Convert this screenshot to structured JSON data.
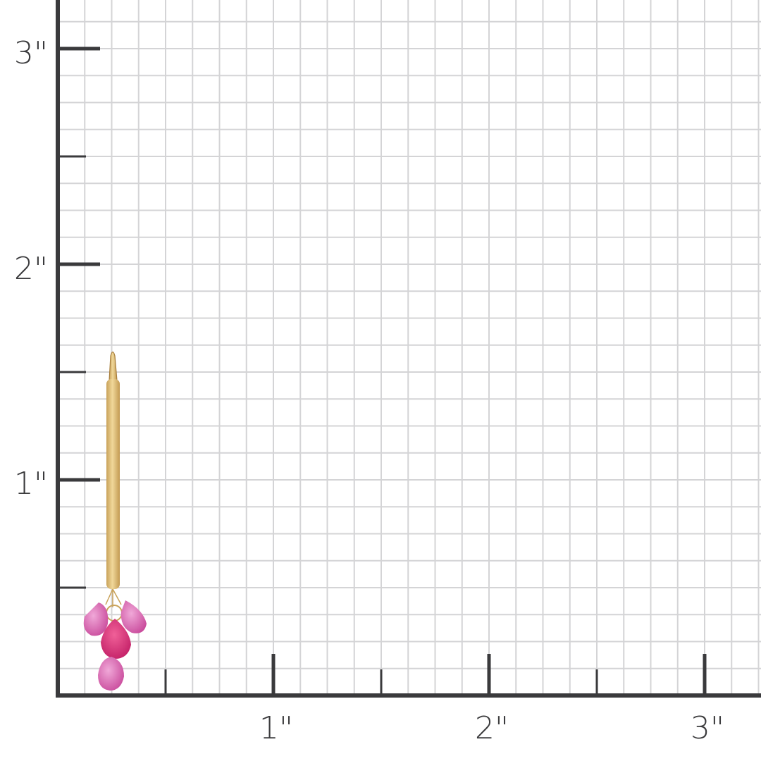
{
  "ruler": {
    "x_labels": [
      "1\"",
      "2\"",
      "3\""
    ],
    "y_labels": [
      "1\"",
      "2\"",
      "3\""
    ],
    "unit": "inch",
    "subdivisions_per_unit": 8,
    "colors": {
      "axis": "#3a3a3c",
      "grid": "#d4d4d6",
      "background": "#ffffff"
    }
  },
  "product": {
    "type": "gold bar earring with pink sapphire briolette drops",
    "colors": {
      "gold": "#e2c27a",
      "gold_dark": "#b8924a",
      "stone_light": "#e070b8",
      "stone_dark": "#d42c78"
    }
  }
}
